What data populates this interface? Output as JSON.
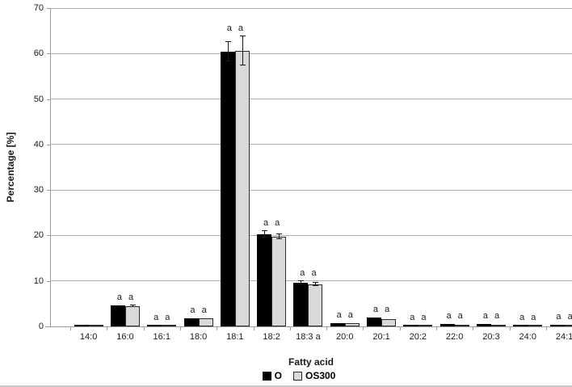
{
  "chart_data": {
    "type": "bar",
    "title": "",
    "xlabel": "Fatty acid",
    "ylabel": "Percentage [%]",
    "ylim": [
      0,
      70
    ],
    "yticks": [
      0,
      10,
      20,
      30,
      40,
      50,
      60,
      70
    ],
    "grid": true,
    "legend_position": "bottom",
    "categories": [
      "14:0",
      "16:0",
      "16:1",
      "18:0",
      "18:1",
      "18:2",
      "18:3 a",
      "20:0",
      "20:1",
      "20:2",
      "22:0",
      "20:3",
      "24:0",
      "24:1"
    ],
    "series": [
      {
        "name": "O",
        "color": "#000000",
        "values": [
          0.25,
          4.6,
          0.2,
          1.7,
          60.4,
          20.3,
          9.6,
          0.8,
          1.9,
          0.25,
          0.45,
          0.45,
          0.25,
          0.35
        ],
        "errors": [
          0,
          0,
          0,
          0,
          2.2,
          0.7,
          0.3,
          0,
          0,
          0,
          0,
          0,
          0,
          0
        ]
      },
      {
        "name": "OS300",
        "color": "#d9d9d9",
        "values": [
          0.2,
          4.4,
          0.2,
          1.7,
          60.6,
          19.7,
          9.2,
          0.7,
          1.6,
          0.2,
          0.4,
          0.4,
          0.2,
          0.3
        ],
        "errors": [
          0,
          0.2,
          0,
          0,
          3.2,
          0.5,
          0.4,
          0,
          0,
          0,
          0,
          0,
          0,
          0
        ]
      }
    ],
    "annotations": {
      "label": "a a",
      "per_category": [
        false,
        true,
        true,
        true,
        true,
        true,
        true,
        true,
        true,
        true,
        true,
        true,
        true,
        true
      ]
    }
  }
}
